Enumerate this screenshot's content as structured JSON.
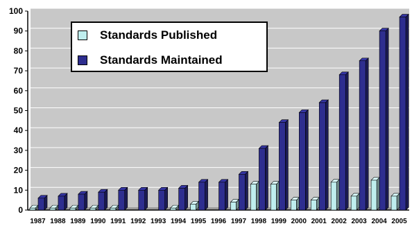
{
  "chart_data": {
    "type": "bar",
    "title": "",
    "xlabel": "",
    "ylabel": "",
    "ylim": [
      0,
      100
    ],
    "yticks": [
      0,
      10,
      20,
      30,
      40,
      50,
      60,
      70,
      80,
      90,
      100
    ],
    "grid": true,
    "legend_position": "top-left",
    "categories": [
      "1987",
      "1988",
      "1989",
      "1990",
      "1991",
      "1992",
      "1993",
      "1994",
      "1995",
      "1996",
      "1997",
      "1998",
      "1999",
      "2000",
      "2001",
      "2002",
      "2003",
      "2004",
      "2005"
    ],
    "series": [
      {
        "name": "Standards Published",
        "color": "#bfeeee",
        "values": [
          1,
          1,
          1,
          1,
          1,
          0,
          0,
          1,
          3,
          0,
          4,
          13,
          13,
          5,
          5,
          14,
          7,
          15,
          7
        ]
      },
      {
        "name": "Standards Maintained",
        "color": "#2e2e8f",
        "values": [
          6,
          7,
          8,
          9,
          10,
          10,
          10,
          11,
          14,
          14,
          18,
          31,
          44,
          49,
          54,
          68,
          75,
          90,
          97
        ]
      }
    ]
  }
}
